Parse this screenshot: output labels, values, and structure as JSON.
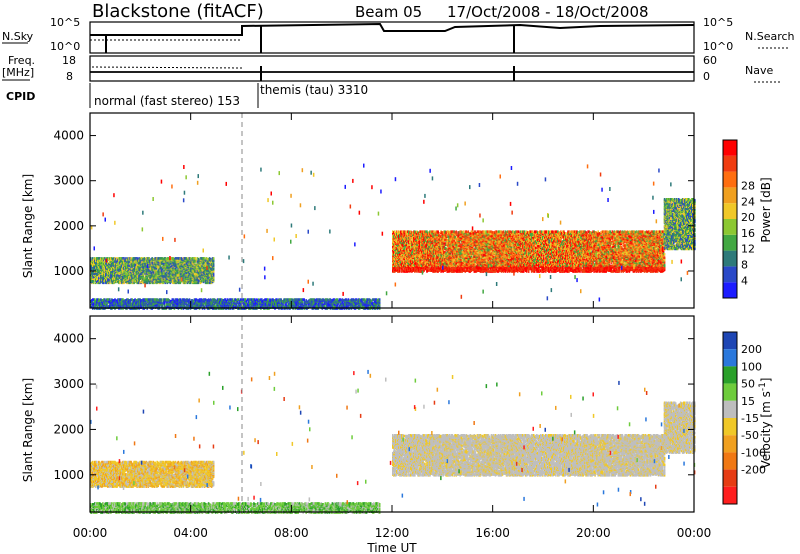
{
  "header": {
    "site": "Blackstone (fitACF)",
    "beam": "Beam 05",
    "dates": "17/Oct/2008 - 18/Oct/2008"
  },
  "status_panel": {
    "nsky_label": "N.Sky",
    "nsearch_label": "N.Search",
    "noise_ticks": [
      "10^5",
      "10^0"
    ],
    "freq_label": "Freq.",
    "freq_unit": "[MHz]",
    "freq_ticks": [
      "18",
      "8"
    ],
    "nave_label": "Nave",
    "nave_ticks": [
      "60",
      "0"
    ],
    "cpid_label": "CPID",
    "cpid_modes": [
      {
        "name": "normal (fast stereo) 153",
        "start_hour": 0.4
      },
      {
        "name": "themis (tau) 3310",
        "start_hour": 6.8
      }
    ]
  },
  "chart_data": [
    {
      "type": "heatmap",
      "title": "Power",
      "xlabel": "Time UT",
      "ylabel": "Slant Range [km]",
      "x_range_hours": [
        0,
        24
      ],
      "x_ticks": [
        "00:00",
        "04:00",
        "08:00",
        "12:00",
        "16:00",
        "20:00",
        "00:00"
      ],
      "ylim": [
        180,
        4500
      ],
      "y_ticks": [
        1000,
        2000,
        3000,
        4000
      ],
      "colorbar": {
        "label": "Power [dB]",
        "ticks": [
          4,
          8,
          12,
          16,
          20,
          24,
          28
        ],
        "colors": [
          "#1c1cff",
          "#2a49c8",
          "#2e7a7a",
          "#42a842",
          "#8cc832",
          "#f0c828",
          "#f0a020",
          "#ff6e10",
          "#f03c10",
          "#ff0000"
        ]
      },
      "bands": [
        {
          "x_start": 0.0,
          "x_end": 4.9,
          "range_low": 750,
          "range_high": 1300,
          "level": "medium"
        },
        {
          "x_start": 0.0,
          "x_end": 11.5,
          "range_low": 180,
          "range_high": 380,
          "level": "low"
        },
        {
          "x_start": 12.0,
          "x_end": 22.8,
          "range_low": 1000,
          "range_high": 1900,
          "level": "high"
        },
        {
          "x_start": 22.8,
          "x_end": 24.0,
          "range_low": 1500,
          "range_high": 2600,
          "level": "medium"
        }
      ]
    },
    {
      "type": "heatmap",
      "title": "Velocity",
      "xlabel": "Time UT",
      "ylabel": "Slant Range [km]",
      "x_range_hours": [
        0,
        24
      ],
      "x_ticks": [
        "00:00",
        "04:00",
        "08:00",
        "12:00",
        "16:00",
        "20:00",
        "00:00"
      ],
      "ylim": [
        180,
        4500
      ],
      "y_ticks": [
        1000,
        2000,
        3000,
        4000
      ],
      "colorbar": {
        "label": "Velocity [m s-1]",
        "ticks": [
          "200",
          "100",
          "50",
          "15",
          "-15",
          "-50",
          "-100",
          "-200"
        ],
        "colors": [
          "#1e46b4",
          "#2a78dc",
          "#2aa02a",
          "#6ecc3c",
          "#bebebe",
          "#f0c828",
          "#f0a020",
          "#f07814",
          "#e63c14",
          "#ff1e1e"
        ]
      },
      "bands": [
        {
          "x_start": 0.0,
          "x_end": 4.9,
          "range_low": 750,
          "range_high": 1300,
          "class": "orange"
        },
        {
          "x_start": 0.0,
          "x_end": 11.5,
          "range_low": 180,
          "range_high": 380,
          "class": "green"
        },
        {
          "x_start": 12.0,
          "x_end": 22.8,
          "range_low": 1000,
          "range_high": 1900,
          "class": "grey"
        },
        {
          "x_start": 22.8,
          "x_end": 24.0,
          "range_low": 1500,
          "range_high": 2600,
          "class": "grey"
        }
      ]
    }
  ],
  "velocity_colorbar_label": "Velocity [m s",
  "velocity_colorbar_sup": "-1",
  "velocity_colorbar_tail": "]"
}
